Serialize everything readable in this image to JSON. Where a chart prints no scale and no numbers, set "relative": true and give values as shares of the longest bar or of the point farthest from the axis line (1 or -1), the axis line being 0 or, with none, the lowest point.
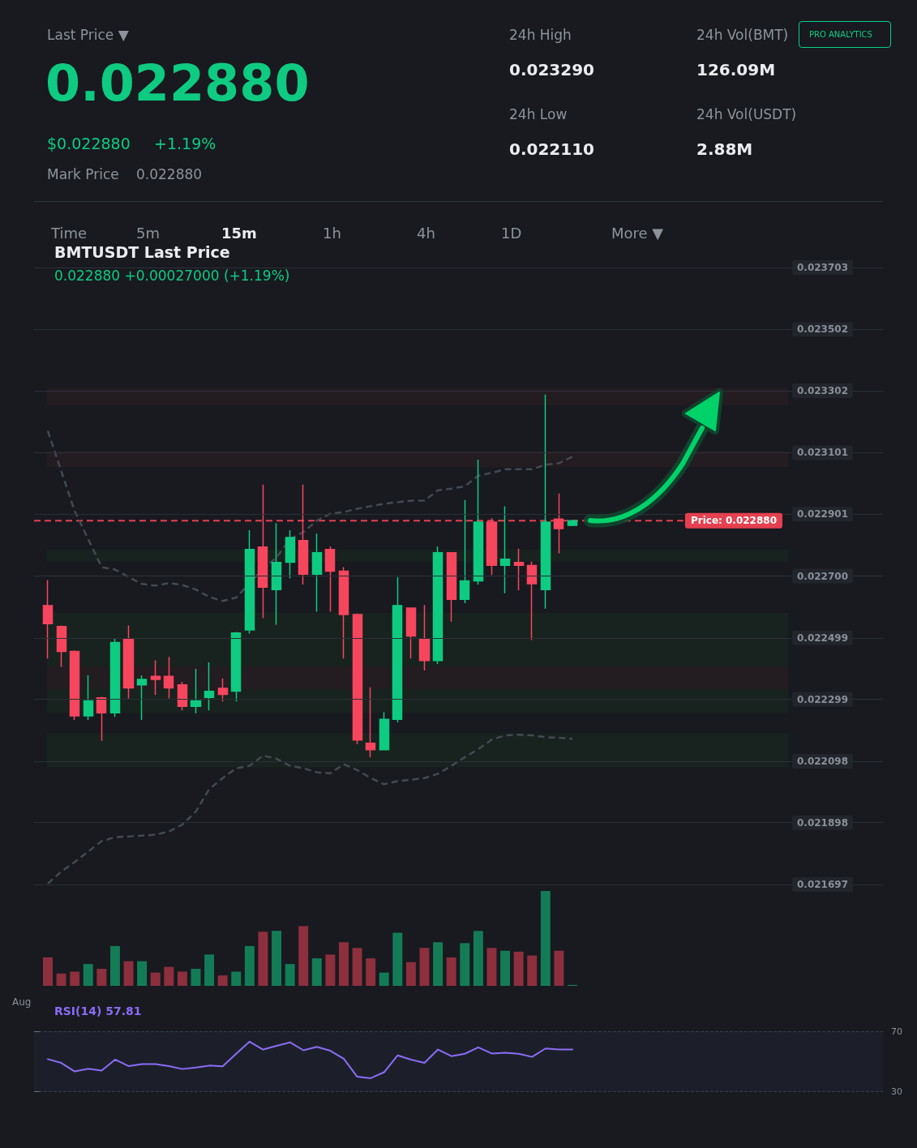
{
  "chart_data": [
    {
      "type": "other",
      "annotations": [
        "Last Price ▼",
        "0.022880",
        "$0.022880",
        "+1.19%",
        "Mark Price",
        "0.022880",
        "24h High",
        "0.023290",
        "24h Low",
        "0.022110",
        "24h Vol(BMT)",
        "126.09M",
        "24h Vol(USDT)",
        "2.88M",
        "PRO ANALYTICS",
        "Time",
        "5m",
        "15m",
        "1h",
        "4h",
        "1D",
        "More ▼"
      ]
    },
    {
      "type": "candlestick",
      "title": "BMTUSDT Last Price",
      "subtitle": "0.022880 +0.00027000 (+1.19%)",
      "categories": [
        null,
        null,
        null,
        null,
        null,
        null,
        null,
        null,
        null,
        null,
        null,
        null,
        null,
        null,
        null,
        null,
        null,
        null,
        null,
        null,
        null,
        null,
        null,
        null,
        null,
        null,
        null,
        null,
        null,
        null,
        null,
        null,
        null,
        null,
        null,
        null,
        null,
        null,
        null,
        null
      ],
      "ohlc": [
        [
          0.022604,
          0.022687,
          0.022432,
          0.022545
        ],
        [
          0.022536,
          0.022539,
          0.022404,
          0.022455
        ],
        [
          0.022455,
          0.022458,
          0.022232,
          0.022245
        ],
        [
          0.022245,
          0.022377,
          0.022232,
          0.022294
        ],
        [
          0.022304,
          0.022307,
          0.022164,
          0.022255
        ],
        [
          0.022255,
          0.022497,
          0.022242,
          0.022484
        ],
        [
          0.022494,
          0.022539,
          0.022302,
          0.022336
        ],
        [
          0.022346,
          0.022377,
          0.022232,
          0.022364
        ],
        [
          0.022374,
          0.022426,
          0.022313,
          0.022364
        ],
        [
          0.022374,
          0.022437,
          0.022302,
          0.022336
        ],
        [
          0.022346,
          0.022356,
          0.022263,
          0.022276
        ],
        [
          0.022276,
          0.022398,
          0.022253,
          0.022294
        ],
        [
          0.022305,
          0.022419,
          0.022263,
          0.022325
        ],
        [
          0.022335,
          0.022367,
          0.022292,
          0.022315
        ],
        [
          0.022326,
          0.022518,
          0.022292,
          0.022515
        ],
        [
          0.022525,
          0.022849,
          0.022513,
          0.022786
        ],
        [
          0.022794,
          0.022997,
          0.022563,
          0.022664
        ],
        [
          0.022656,
          0.022872,
          0.022542,
          0.022744
        ],
        [
          0.022745,
          0.022849,
          0.022693,
          0.022825
        ],
        [
          0.022815,
          0.022997,
          0.022672,
          0.022706
        ],
        [
          0.022706,
          0.022838,
          0.022584,
          0.022776
        ],
        [
          0.022786,
          0.022796,
          0.022584,
          0.022716
        ],
        [
          0.022716,
          0.022729,
          0.022432,
          0.022575
        ],
        [
          0.022575,
          0.022578,
          0.022154,
          0.022167
        ],
        [
          0.022156,
          0.022338,
          0.02211,
          0.022135
        ],
        [
          0.022135,
          0.022257,
          0.022133,
          0.022234
        ],
        [
          0.022234,
          0.022697,
          0.022224,
          0.022604
        ],
        [
          0.022596,
          0.022598,
          0.022432,
          0.022505
        ],
        [
          0.022494,
          0.022606,
          0.022393,
          0.022425
        ],
        [
          0.022425,
          0.022796,
          0.022414,
          0.022776
        ],
        [
          0.022776,
          0.022778,
          0.022552,
          0.022624
        ],
        [
          0.022624,
          0.022947,
          0.022612,
          0.022684
        ],
        [
          0.022684,
          0.023078,
          0.022672,
          0.022875
        ],
        [
          0.022875,
          0.022888,
          0.022703,
          0.022735
        ],
        [
          0.022735,
          0.022927,
          0.022644,
          0.022755
        ],
        [
          0.022744,
          0.022789,
          0.022654,
          0.022735
        ],
        [
          0.022734,
          0.022747,
          0.022492,
          0.022675
        ],
        [
          0.022656,
          0.02329,
          0.022594,
          0.022875
        ],
        [
          0.022885,
          0.022968,
          0.022774,
          0.022854
        ],
        [
          0.022865,
          0.02288,
          0.022862,
          0.02288
        ]
      ],
      "colors": [
        "#f6465d",
        "#f6465d",
        "#f6465d",
        "#0ecb81",
        "#f6465d",
        "#0ecb81",
        "#f6465d",
        "#0ecb81",
        "#f6465d",
        "#f6465d",
        "#f6465d",
        "#0ecb81",
        "#0ecb81",
        "#f6465d",
        "#0ecb81",
        "#0ecb81",
        "#f6465d",
        "#0ecb81",
        "#0ecb81",
        "#f6465d",
        "#0ecb81",
        "#f6465d",
        "#f6465d",
        "#f6465d",
        "#f6465d",
        "#0ecb81",
        "#0ecb81",
        "#f6465d",
        "#f6465d",
        "#0ecb81",
        "#f6465d",
        "#0ecb81",
        "#0ecb81",
        "#f6465d",
        "#0ecb81",
        "#f6465d",
        "#f6465d",
        "#0ecb81",
        "#f6465d",
        "#0ecb81"
      ],
      "series": [
        {
          "type": "line",
          "color": "#444952",
          "values": [
            0.023172,
            0.023041,
            0.022911,
            0.02282,
            0.022729,
            0.022721,
            0.022697,
            0.022674,
            0.022669,
            0.022677,
            0.022671,
            0.022656,
            0.022632,
            0.022619,
            0.02263,
            null,
            0.022723,
            0.02276,
            0.02282,
            0.022843,
            0.02288,
            0.022903,
            0.022908,
            0.022919,
            0.022927,
            0.022935,
            0.02294,
            0.022945,
            0.022945,
            0.022979,
            0.022984,
            0.022992,
            0.023026,
            0.023036,
            0.023047,
            0.023047,
            0.023047,
            0.023062,
            0.023067,
            0.023088
          ]
        },
        {
          "type": "line",
          "color": "#444952",
          "values": [
            0.0217,
            0.021739,
            0.02177,
            0.021804,
            0.021838,
            0.021851,
            0.021853,
            0.021856,
            0.021859,
            0.021869,
            0.021892,
            0.021934,
            0.022007,
            0.022043,
            0.022075,
            0.022083,
            0.022116,
            0.022106,
            0.022083,
            0.022075,
            0.022062,
            0.022059,
            0.022088,
            0.022069,
            0.022043,
            0.022023,
            0.022033,
            0.022038,
            0.022043,
            0.022057,
            0.022083,
            0.022111,
            0.022137,
            0.022168,
            0.022182,
            0.022184,
            0.022182,
            0.022176,
            0.022174,
            0.022171
          ]
        }
      ],
      "line_style": "dashed",
      "marker": "none",
      "ylim": [
        0.021697,
        0.023703
      ],
      "yticks": [
        0.023703,
        0.023502,
        0.023302,
        0.023101,
        0.022901,
        {
          "value": 0.0227,
          "label": "0.022700"
        },
        0.022499,
        0.022299,
        0.022098,
        0.021898,
        0.021697
      ],
      "grid": "y",
      "ref_lines": [
        {
          "axis": "y",
          "value": 0.02288,
          "label": "Price: 0.022880",
          "color": "#e5404f",
          "line_style": "dashed"
        }
      ],
      "bands": [
        {
          "axis": "y",
          "from": 0.023255,
          "to": 0.023312,
          "color": "#231c21"
        },
        {
          "axis": "y",
          "from": 0.023054,
          "to": 0.023106,
          "color": "#231c21"
        },
        {
          "axis": "y",
          "from": 0.022747,
          "to": 0.022786,
          "color": "#18221f"
        },
        {
          "axis": "y",
          "from": 0.022255,
          "to": 0.02258,
          "color": "#18221f"
        },
        {
          "axis": "y",
          "from": 0.022333,
          "to": 0.022406,
          "color": "#231c21"
        },
        {
          "axis": "y",
          "from": 0.022077,
          "to": 0.022189,
          "color": "#18221f"
        }
      ]
    },
    {
      "type": "bar",
      "relative": true,
      "categories": [
        null,
        null,
        null,
        null,
        null,
        null,
        null,
        null,
        null,
        null,
        null,
        null,
        null,
        null,
        null,
        null,
        null,
        null,
        null,
        null,
        null,
        null,
        null,
        null,
        null,
        null,
        null,
        null,
        null,
        null,
        null,
        null,
        null,
        null,
        null,
        null,
        null,
        null,
        null,
        null
      ],
      "values": [
        0.3,
        0.13,
        0.15,
        0.23,
        0.18,
        0.42,
        0.26,
        0.26,
        0.14,
        0.2,
        0.15,
        0.18,
        0.33,
        0.11,
        0.15,
        0.42,
        0.57,
        0.58,
        0.23,
        0.63,
        0.29,
        0.33,
        0.46,
        0.4,
        0.29,
        0.14,
        0.56,
        0.25,
        0.4,
        0.46,
        0.3,
        0.45,
        0.58,
        0.4,
        0.37,
        0.36,
        0.32,
        1,
        0.37,
        0.01
      ],
      "colors": [
        "#8d2f3d",
        "#8d2f3d",
        "#8d2f3d",
        "#137c56",
        "#8d2f3d",
        "#137c56",
        "#8d2f3d",
        "#137c56",
        "#8d2f3d",
        "#8d2f3d",
        "#8d2f3d",
        "#137c56",
        "#137c56",
        "#8d2f3d",
        "#137c56",
        "#137c56",
        "#8d2f3d",
        "#137c56",
        "#137c56",
        "#8d2f3d",
        "#137c56",
        "#8d2f3d",
        "#8d2f3d",
        "#8d2f3d",
        "#8d2f3d",
        "#137c56",
        "#137c56",
        "#8d2f3d",
        "#8d2f3d",
        "#137c56",
        "#8d2f3d",
        "#137c56",
        "#137c56",
        "#8d2f3d",
        "#137c56",
        "#8d2f3d",
        "#8d2f3d",
        "#137c56",
        "#8d2f3d",
        "#137c56"
      ],
      "annotations": [
        "Aug"
      ]
    },
    {
      "type": "line",
      "title": "RSI(14) 57.81",
      "color": "#8b6cf6",
      "marker": "none",
      "categories": [
        null,
        null,
        null,
        null,
        null,
        null,
        null,
        null,
        null,
        null,
        null,
        null,
        null,
        null,
        null,
        null,
        null,
        null,
        null,
        null,
        null,
        null,
        null,
        null,
        null,
        null,
        null,
        null,
        null,
        null,
        null,
        null,
        null,
        null,
        null,
        null,
        null,
        null,
        null,
        null
      ],
      "values": [
        51.4,
        48.9,
        43.2,
        45.0,
        43.8,
        51.1,
        46.8,
        48.1,
        48.1,
        46.8,
        44.8,
        45.8,
        47.1,
        46.6,
        55.0,
        63.1,
        57.8,
        60.3,
        62.6,
        57.3,
        59.6,
        57.0,
        51.7,
        39.7,
        38.7,
        42.7,
        53.9,
        51.1,
        48.9,
        57.8,
        53.4,
        55.0,
        59.3,
        55.2,
        55.7,
        55.0,
        52.9,
        58.5,
        57.8,
        57.81
      ],
      "ylim": [
        30,
        70
      ],
      "yticks": [
        30,
        70
      ],
      "grid": "y"
    }
  ]
}
